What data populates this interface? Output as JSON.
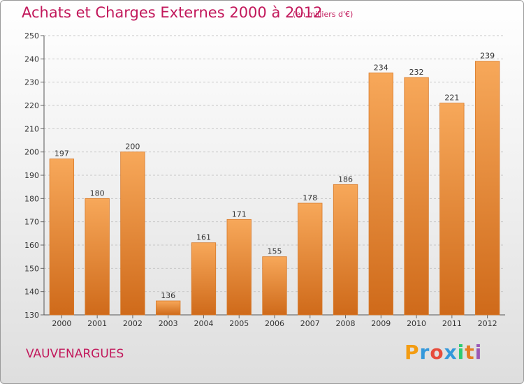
{
  "chart_data": {
    "type": "bar",
    "title": "Achats et Charges Externes 2000 à 2012",
    "subtitle": "(en milliers d'€)",
    "categories": [
      "2000",
      "2001",
      "2002",
      "2003",
      "2004",
      "2005",
      "2006",
      "2007",
      "2008",
      "2009",
      "2010",
      "2011",
      "2012"
    ],
    "values": [
      197,
      180,
      200,
      136,
      161,
      171,
      155,
      178,
      186,
      234,
      232,
      221,
      239
    ],
    "ylim": [
      130,
      250
    ],
    "yticks": [
      130,
      140,
      150,
      160,
      170,
      180,
      190,
      200,
      210,
      220,
      230,
      240,
      250
    ],
    "grid": true,
    "xlabel": "",
    "ylabel": ""
  },
  "footer": {
    "commune": "VAUVENARGUES",
    "logo_letters": [
      "P",
      "r",
      "o",
      "x",
      "i",
      "t",
      "i"
    ],
    "logo_colors": [
      "#f39c12",
      "#3498db",
      "#e74c3c",
      "#3498db",
      "#2ecc71",
      "#e67e22",
      "#9b59b6"
    ]
  },
  "colors": {
    "bar_light": "#f7a85a",
    "bar_dark": "#cf6a1a",
    "title": "#c2185b"
  }
}
